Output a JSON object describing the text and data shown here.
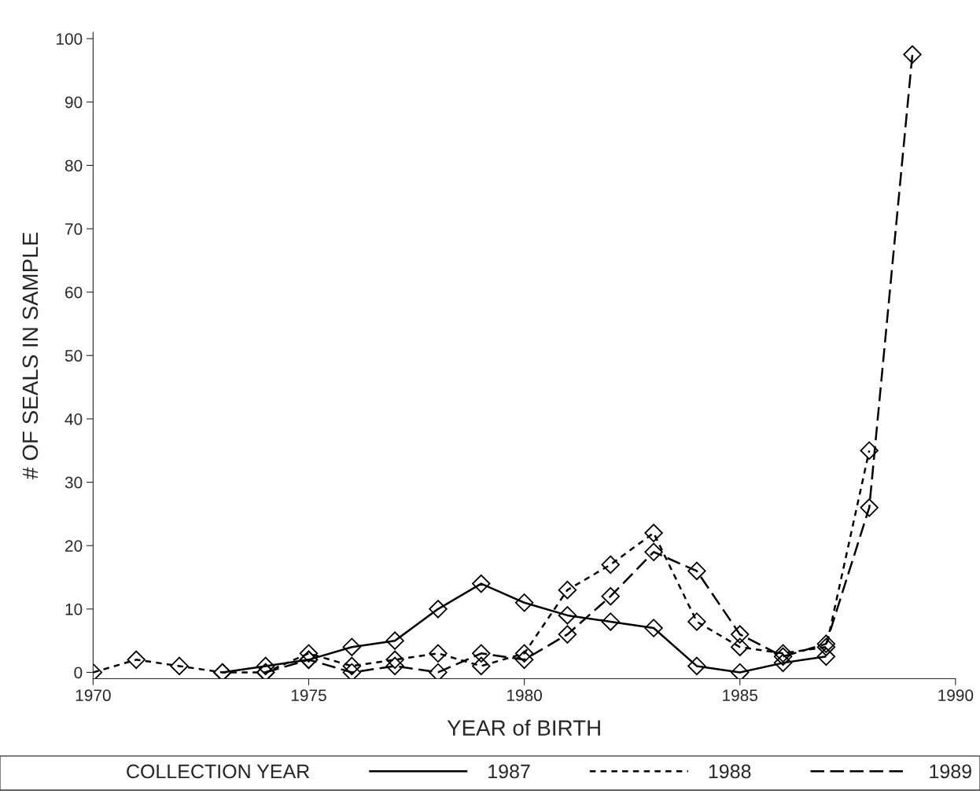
{
  "chart_data": {
    "type": "line",
    "xlabel": "YEAR of BIRTH",
    "ylabel": "# OF SEALS IN SAMPLE",
    "legend_title": "COLLECTION YEAR",
    "xlim": [
      1970,
      1990
    ],
    "xticks": [
      1970,
      1975,
      1980,
      1985,
      1990
    ],
    "ylim": [
      -1,
      101
    ],
    "yticks": [
      0,
      10,
      20,
      30,
      40,
      50,
      60,
      70,
      80,
      90,
      100
    ],
    "grid": false,
    "legend": "bottom",
    "marker": "diamond",
    "series": [
      {
        "name": "1987",
        "color": "#000000",
        "line_style": "solid",
        "x": [
          1973,
          1974,
          1975,
          1976,
          1977,
          1978,
          1979,
          1980,
          1981,
          1982,
          1983,
          1984,
          1985,
          1986,
          1987
        ],
        "values": [
          0,
          1,
          2,
          4,
          5,
          10,
          14,
          11,
          9,
          8,
          7,
          1,
          0,
          1.5,
          2.5
        ]
      },
      {
        "name": "1988",
        "color": "#000000",
        "line_style": "dotted",
        "x": [
          1970,
          1971,
          1972,
          1973,
          1974,
          1975,
          1976,
          1977,
          1978,
          1979,
          1980,
          1981,
          1982,
          1983,
          1984,
          1985,
          1986,
          1987,
          1988
        ],
        "values": [
          0,
          2,
          1,
          0,
          0,
          3,
          1,
          2,
          3,
          1,
          3,
          13,
          17,
          22,
          8,
          4,
          3,
          4,
          35
        ]
      },
      {
        "name": "1989",
        "color": "#000000",
        "line_style": "dashed",
        "x": [
          1974,
          1975,
          1976,
          1977,
          1978,
          1979,
          1980,
          1981,
          1982,
          1983,
          1984,
          1985,
          1986,
          1987,
          1988,
          1989
        ],
        "values": [
          0,
          2,
          0,
          1,
          0,
          3,
          2,
          6,
          12,
          19,
          16,
          6,
          2.5,
          4.5,
          26,
          97.5
        ]
      }
    ]
  }
}
